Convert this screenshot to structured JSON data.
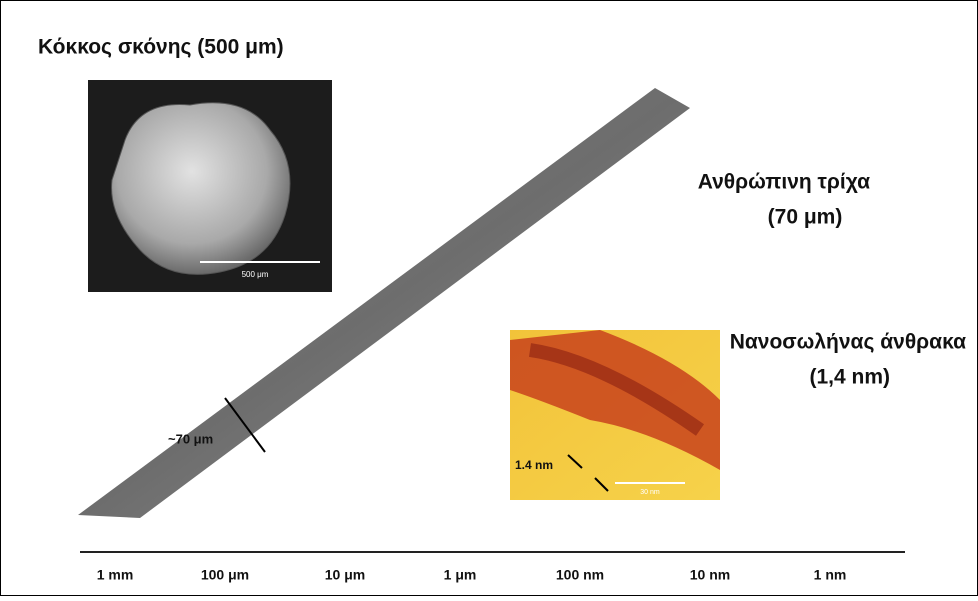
{
  "dust": {
    "label": "Κόκκος σκόνης (500 μm)",
    "scale_bar": "500 μm"
  },
  "hair": {
    "label": "Ανθρώπινη τρίχα",
    "size": "(70 μm)",
    "width_label": "~70 μm"
  },
  "nanotube": {
    "label": "Νανοσωλήνας άνθρακα",
    "size": "(1,4 nm)",
    "width_label": "1.4 nm",
    "scale_bar": "30 nm"
  },
  "scale": {
    "ticks": [
      "1 mm",
      "100 μm",
      "10 μm",
      "1 μm",
      "100 nm",
      "10 nm",
      "1 nm"
    ]
  }
}
